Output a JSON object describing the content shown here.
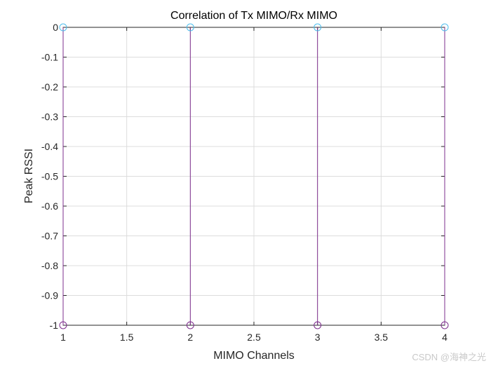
{
  "chart_data": {
    "type": "stem",
    "title": "Correlation of Tx MIMO/Rx MIMO",
    "xlabel": "MIMO Channels",
    "ylabel": "Peak RSSI",
    "x": [
      1,
      2,
      3,
      4
    ],
    "series": [
      {
        "name": "stems-at-zero",
        "baseline": 0,
        "values": [
          0,
          0,
          0,
          0
        ],
        "color": "#4DBEEE",
        "marker": "circle"
      },
      {
        "name": "stems-at-minus-one",
        "baseline": 0,
        "values": [
          -1,
          -1,
          -1,
          -1
        ],
        "color": "#7E2F8E",
        "marker": "circle"
      }
    ],
    "xlim": [
      1,
      4
    ],
    "ylim": [
      -1,
      0
    ],
    "xticks": [
      1,
      1.5,
      2,
      2.5,
      3,
      3.5,
      4
    ],
    "xtick_labels": [
      "1",
      "1.5",
      "2",
      "2.5",
      "3",
      "3.5",
      "4"
    ],
    "yticks": [
      0,
      -0.1,
      -0.2,
      -0.3,
      -0.4,
      -0.5,
      -0.6,
      -0.7,
      -0.8,
      -0.9,
      -1
    ],
    "ytick_labels": [
      "0",
      "-0.1",
      "-0.2",
      "-0.3",
      "-0.4",
      "-0.5",
      "-0.6",
      "-0.7",
      "-0.8",
      "-0.9",
      "-1"
    ],
    "grid": true,
    "legend": "none",
    "colors": {
      "axis": "#262626",
      "grid": "#dcdcdc",
      "title": "#000000",
      "tick_label": "#262626",
      "background": "#ffffff"
    }
  },
  "watermark": {
    "text": "CSDN @海神之光",
    "color": "#c9c9c9"
  }
}
